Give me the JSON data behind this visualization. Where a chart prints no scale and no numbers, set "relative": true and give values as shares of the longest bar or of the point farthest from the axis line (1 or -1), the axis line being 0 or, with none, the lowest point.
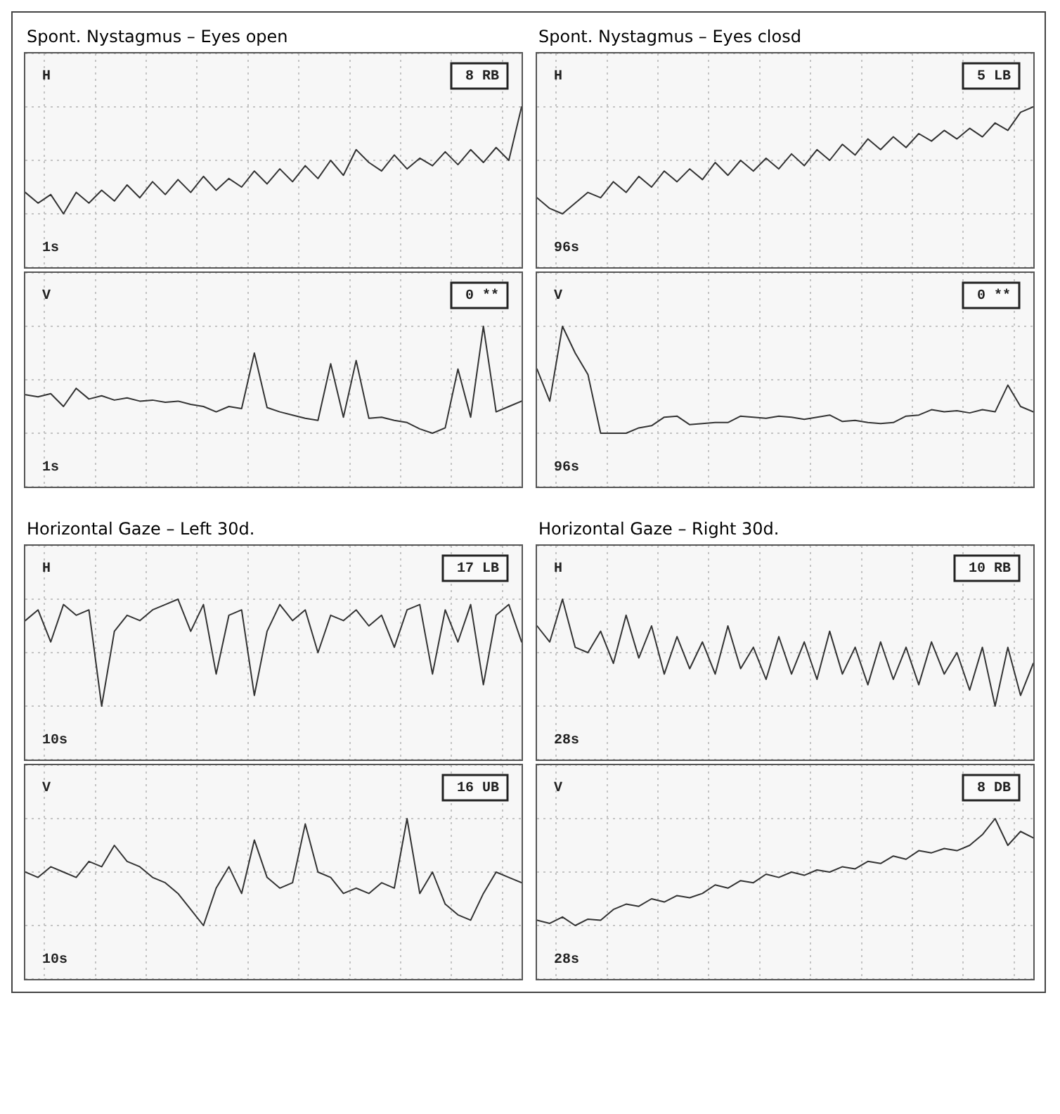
{
  "chart_data": [
    {
      "type": "line",
      "title": "Spont. Nystagmus – Eyes open",
      "relative": true,
      "grid": true,
      "color": "#333333",
      "annotations": [
        "H",
        "8 RB",
        "1s"
      ],
      "categories": [
        null,
        null,
        null,
        null,
        null,
        null,
        null,
        null,
        null,
        null,
        null,
        null,
        null,
        null,
        null,
        null,
        null,
        null,
        null,
        null,
        null,
        null,
        null,
        null,
        null,
        null,
        null,
        null,
        null,
        null,
        null,
        null,
        null,
        null,
        null,
        null,
        null,
        null,
        null,
        null
      ],
      "values": [
        0.2,
        0.1,
        0.18,
        0,
        0.2,
        0.1,
        0.22,
        0.12,
        0.27,
        0.15,
        0.3,
        0.18,
        0.32,
        0.2,
        0.35,
        0.22,
        0.33,
        0.25,
        0.4,
        0.28,
        0.42,
        0.3,
        0.45,
        0.33,
        0.5,
        0.36,
        0.6,
        0.48,
        0.4,
        0.55,
        0.42,
        0.52,
        0.45,
        0.58,
        0.46,
        0.6,
        0.48,
        0.62,
        0.5,
        1
      ]
    },
    {
      "type": "line",
      "relative": true,
      "grid": true,
      "color": "#333333",
      "annotations": [
        "V",
        "0 **",
        "1s"
      ],
      "categories": [
        null,
        null,
        null,
        null,
        null,
        null,
        null,
        null,
        null,
        null,
        null,
        null,
        null,
        null,
        null,
        null,
        null,
        null,
        null,
        null,
        null,
        null,
        null,
        null,
        null,
        null,
        null,
        null,
        null,
        null,
        null,
        null,
        null,
        null,
        null,
        null,
        null,
        null,
        null,
        null
      ],
      "values": [
        0.36,
        0.34,
        0.37,
        0.25,
        0.42,
        0.32,
        0.35,
        0.31,
        0.33,
        0.3,
        0.31,
        0.29,
        0.3,
        0.27,
        0.25,
        0.2,
        0.25,
        0.23,
        0.75,
        0.24,
        0.2,
        0.17,
        0.14,
        0.12,
        0.65,
        0.15,
        0.68,
        0.14,
        0.15,
        0.12,
        0.1,
        0.04,
        0,
        0.05,
        0.6,
        0.15,
        1,
        0.2,
        0.25,
        0.3
      ]
    },
    {
      "type": "line",
      "title": "Spont. Nystagmus – Eyes closd",
      "relative": true,
      "grid": true,
      "color": "#333333",
      "annotations": [
        "H",
        "5 LB",
        "96s"
      ],
      "categories": [
        null,
        null,
        null,
        null,
        null,
        null,
        null,
        null,
        null,
        null,
        null,
        null,
        null,
        null,
        null,
        null,
        null,
        null,
        null,
        null,
        null,
        null,
        null,
        null,
        null,
        null,
        null,
        null,
        null,
        null,
        null,
        null,
        null,
        null,
        null,
        null,
        null,
        null,
        null,
        null
      ],
      "values": [
        0.15,
        0.05,
        0,
        0.1,
        0.2,
        0.15,
        0.3,
        0.2,
        0.35,
        0.25,
        0.4,
        0.3,
        0.42,
        0.32,
        0.48,
        0.36,
        0.5,
        0.4,
        0.52,
        0.42,
        0.56,
        0.45,
        0.6,
        0.5,
        0.65,
        0.55,
        0.7,
        0.6,
        0.72,
        0.62,
        0.75,
        0.68,
        0.78,
        0.7,
        0.8,
        0.72,
        0.85,
        0.78,
        0.95,
        1
      ]
    },
    {
      "type": "line",
      "relative": true,
      "grid": true,
      "color": "#333333",
      "annotations": [
        "V",
        "0 **",
        "96s"
      ],
      "categories": [
        null,
        null,
        null,
        null,
        null,
        null,
        null,
        null,
        null,
        null,
        null,
        null,
        null,
        null,
        null,
        null,
        null,
        null,
        null,
        null,
        null,
        null,
        null,
        null,
        null,
        null,
        null,
        null,
        null,
        null,
        null,
        null,
        null,
        null,
        null,
        null,
        null,
        null,
        null,
        null
      ],
      "values": [
        0.6,
        0.3,
        1,
        0.75,
        0.55,
        0,
        0,
        0,
        0.05,
        0.07,
        0.15,
        0.16,
        0.08,
        0.09,
        0.1,
        0.1,
        0.16,
        0.15,
        0.14,
        0.16,
        0.15,
        0.13,
        0.15,
        0.17,
        0.11,
        0.12,
        0.1,
        0.09,
        0.1,
        0.16,
        0.17,
        0.22,
        0.2,
        0.21,
        0.19,
        0.22,
        0.2,
        0.45,
        0.25,
        0.2
      ]
    },
    {
      "type": "line",
      "title": "Horizontal Gaze – Left 30d.",
      "relative": true,
      "grid": true,
      "color": "#333333",
      "annotations": [
        "H",
        "17 LB",
        "10s"
      ],
      "categories": [
        null,
        null,
        null,
        null,
        null,
        null,
        null,
        null,
        null,
        null,
        null,
        null,
        null,
        null,
        null,
        null,
        null,
        null,
        null,
        null,
        null,
        null,
        null,
        null,
        null,
        null,
        null,
        null,
        null,
        null,
        null,
        null,
        null,
        null,
        null,
        null,
        null,
        null,
        null,
        null
      ],
      "values": [
        0.8,
        0.9,
        0.6,
        0.95,
        0.85,
        0.9,
        0,
        0.7,
        0.85,
        0.8,
        0.9,
        0.95,
        1,
        0.7,
        0.95,
        0.3,
        0.85,
        0.9,
        0.1,
        0.7,
        0.95,
        0.8,
        0.9,
        0.5,
        0.85,
        0.8,
        0.9,
        0.75,
        0.85,
        0.55,
        0.9,
        0.95,
        0.3,
        0.9,
        0.6,
        0.95,
        0.2,
        0.85,
        0.95,
        0.6
      ]
    },
    {
      "type": "line",
      "relative": true,
      "grid": true,
      "color": "#333333",
      "annotations": [
        "V",
        "16 UB",
        "10s"
      ],
      "categories": [
        null,
        null,
        null,
        null,
        null,
        null,
        null,
        null,
        null,
        null,
        null,
        null,
        null,
        null,
        null,
        null,
        null,
        null,
        null,
        null,
        null,
        null,
        null,
        null,
        null,
        null,
        null,
        null,
        null,
        null,
        null,
        null,
        null,
        null,
        null,
        null,
        null,
        null,
        null,
        null
      ],
      "values": [
        0.5,
        0.45,
        0.55,
        0.5,
        0.45,
        0.6,
        0.55,
        0.75,
        0.6,
        0.55,
        0.45,
        0.4,
        0.3,
        0.15,
        0,
        0.35,
        0.55,
        0.3,
        0.8,
        0.45,
        0.35,
        0.4,
        0.95,
        0.5,
        0.45,
        0.3,
        0.35,
        0.3,
        0.4,
        0.35,
        1,
        0.3,
        0.5,
        0.2,
        0.1,
        0.05,
        0.3,
        0.5,
        0.45,
        0.4
      ]
    },
    {
      "type": "line",
      "title": "Horizontal Gaze – Right 30d.",
      "relative": true,
      "grid": true,
      "color": "#333333",
      "annotations": [
        "H",
        "10 RB",
        "28s"
      ],
      "categories": [
        null,
        null,
        null,
        null,
        null,
        null,
        null,
        null,
        null,
        null,
        null,
        null,
        null,
        null,
        null,
        null,
        null,
        null,
        null,
        null,
        null,
        null,
        null,
        null,
        null,
        null,
        null,
        null,
        null,
        null,
        null,
        null,
        null,
        null,
        null,
        null,
        null,
        null,
        null,
        null
      ],
      "values": [
        0.75,
        0.6,
        1,
        0.55,
        0.5,
        0.7,
        0.4,
        0.85,
        0.45,
        0.75,
        0.3,
        0.65,
        0.35,
        0.6,
        0.3,
        0.75,
        0.35,
        0.55,
        0.25,
        0.65,
        0.3,
        0.6,
        0.25,
        0.7,
        0.3,
        0.55,
        0.2,
        0.6,
        0.25,
        0.55,
        0.2,
        0.6,
        0.3,
        0.5,
        0.15,
        0.55,
        0,
        0.55,
        0.1,
        0.4
      ]
    },
    {
      "type": "line",
      "relative": true,
      "grid": true,
      "color": "#333333",
      "annotations": [
        "V",
        "8 DB",
        "28s"
      ],
      "categories": [
        null,
        null,
        null,
        null,
        null,
        null,
        null,
        null,
        null,
        null,
        null,
        null,
        null,
        null,
        null,
        null,
        null,
        null,
        null,
        null,
        null,
        null,
        null,
        null,
        null,
        null,
        null,
        null,
        null,
        null,
        null,
        null,
        null,
        null,
        null,
        null,
        null,
        null,
        null,
        null
      ],
      "values": [
        0.05,
        0.02,
        0.08,
        0,
        0.06,
        0.05,
        0.15,
        0.2,
        0.18,
        0.25,
        0.22,
        0.28,
        0.26,
        0.3,
        0.38,
        0.35,
        0.42,
        0.4,
        0.48,
        0.45,
        0.5,
        0.47,
        0.52,
        0.5,
        0.55,
        0.53,
        0.6,
        0.58,
        0.65,
        0.62,
        0.7,
        0.68,
        0.72,
        0.7,
        0.75,
        0.85,
        1,
        0.75,
        0.88,
        0.82
      ]
    }
  ]
}
